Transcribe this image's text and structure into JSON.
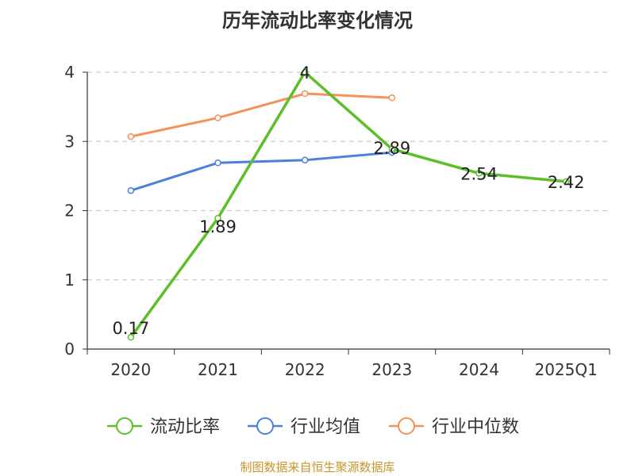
{
  "chart_data": {
    "type": "line",
    "title": "历年流动比率变化情况",
    "categories": [
      "2020",
      "2021",
      "2022",
      "2023",
      "2024",
      "2025Q1"
    ],
    "ylim": [
      0,
      4
    ],
    "yticks": [
      0,
      1,
      2,
      3,
      4
    ],
    "grid": true,
    "legend": "bottom",
    "series": [
      {
        "name": "流动比率",
        "color": "#5cbf2a",
        "values": [
          0.17,
          1.89,
          4,
          2.89,
          2.54,
          2.42
        ],
        "labels": [
          "0.17",
          "1.89",
          "4",
          "2.89",
          "2.54",
          "2.42"
        ]
      },
      {
        "name": "行业均值",
        "color": "#4e7fdb",
        "values": [
          2.29,
          2.69,
          2.73,
          2.84,
          null,
          null
        ]
      },
      {
        "name": "行业中位数",
        "color": "#f5915a",
        "values": [
          3.07,
          3.34,
          3.69,
          3.63,
          null,
          null
        ]
      }
    ],
    "source": "制图数据来自恒生聚源数据库"
  }
}
